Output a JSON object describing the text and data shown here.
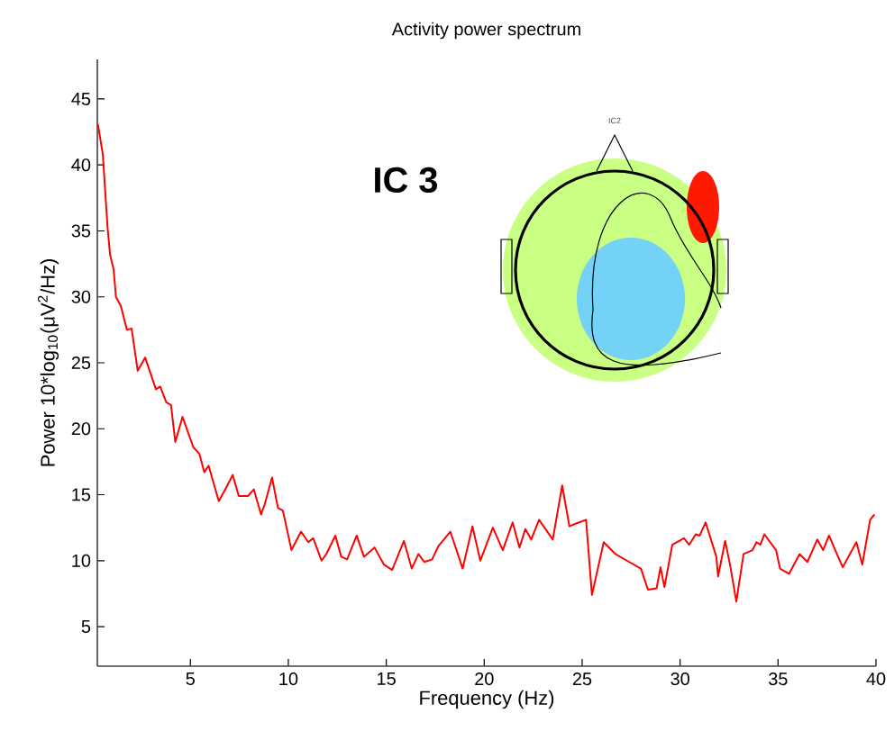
{
  "chart_data": {
    "type": "line",
    "title": "Activity power spectrum",
    "xlabel": "Frequency (Hz)",
    "ylabel": "Power 10*log$_{10}$(μV$^{2}$/Hz)",
    "xlim": [
      0.25,
      40
    ],
    "ylim": [
      2,
      48
    ],
    "xticks": [
      5,
      10,
      15,
      20,
      25,
      30,
      35,
      40
    ],
    "yticks": [
      5,
      10,
      15,
      20,
      25,
      30,
      35,
      40,
      45
    ],
    "grid": false,
    "marker": "none",
    "line_style": "solid",
    "annotations": [
      "IC 3",
      "IC2"
    ],
    "series": [
      {
        "color": "#ff0000",
        "x": [
          0.28,
          0.53,
          0.77,
          0.9,
          1.08,
          1.2,
          1.45,
          1.76,
          2.0,
          2.31,
          2.69,
          3.24,
          3.46,
          3.77,
          4.01,
          4.23,
          4.6,
          5.15,
          5.46,
          5.71,
          5.93,
          6.45,
          6.85,
          7.16,
          7.47,
          7.93,
          8.24,
          8.61,
          8.8,
          9.17,
          9.47,
          9.72,
          10.16,
          10.65,
          11.02,
          11.27,
          11.7,
          11.94,
          12.4,
          12.7,
          13.0,
          13.49,
          13.86,
          14.4,
          14.88,
          15.3,
          15.9,
          16.3,
          16.64,
          16.94,
          17.34,
          17.66,
          18.27,
          18.9,
          19.4,
          19.8,
          20.44,
          20.95,
          21.45,
          21.8,
          22.1,
          22.4,
          22.8,
          23.5,
          23.98,
          24.35,
          24.66,
          25.2,
          25.5,
          26.1,
          26.7,
          27.4,
          28.0,
          28.36,
          28.8,
          29.0,
          29.2,
          29.6,
          30.2,
          30.46,
          30.8,
          31.0,
          31.3,
          31.85,
          31.94,
          32.3,
          32.56,
          32.87,
          33.24,
          33.7,
          33.9,
          34.1,
          34.3,
          34.9,
          35.1,
          35.56,
          36.1,
          36.5,
          37.0,
          37.3,
          37.6,
          38.3,
          39.0,
          39.3,
          39.7,
          39.92
        ],
        "values": [
          43.1,
          40.8,
          35.3,
          33.2,
          32.1,
          30.0,
          29.3,
          27.5,
          27.6,
          24.4,
          25.4,
          23.0,
          23.2,
          22.0,
          21.8,
          19.0,
          20.9,
          18.6,
          18.1,
          16.7,
          17.2,
          14.5,
          15.6,
          16.5,
          14.9,
          14.9,
          15.4,
          13.5,
          14.3,
          16.3,
          14.0,
          13.8,
          10.8,
          12.2,
          11.4,
          11.7,
          10.0,
          10.5,
          11.9,
          10.3,
          10.1,
          11.9,
          10.3,
          11.0,
          9.7,
          9.3,
          11.5,
          9.4,
          10.5,
          9.9,
          10.1,
          11.1,
          12.2,
          9.4,
          12.6,
          10.0,
          12.5,
          10.8,
          12.9,
          11.0,
          12.4,
          11.6,
          13.1,
          11.6,
          15.7,
          12.6,
          12.8,
          13.1,
          7.4,
          11.4,
          10.5,
          9.9,
          9.4,
          7.8,
          7.9,
          9.5,
          8.0,
          11.2,
          11.7,
          11.2,
          12.0,
          11.9,
          12.9,
          10.3,
          8.8,
          11.5,
          9.6,
          6.9,
          10.5,
          10.8,
          11.4,
          11.2,
          12.0,
          10.8,
          9.4,
          9.0,
          10.5,
          9.9,
          11.6,
          10.8,
          11.9,
          9.5,
          11.4,
          9.7,
          13.1,
          13.5
        ]
      }
    ]
  }
}
